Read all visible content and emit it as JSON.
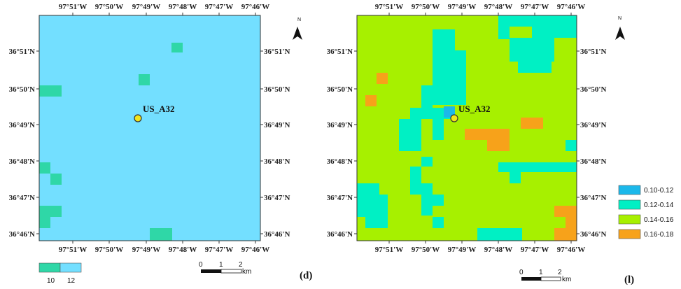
{
  "site_name": "US_A32",
  "lon_ticks": [
    "97°51'W",
    "97°50'W",
    "97°49'W",
    "97°48'W",
    "97°47'W",
    "97°46'W"
  ],
  "lat_ticks": [
    "36°51'N",
    "36°50'N",
    "36°49'N",
    "36°48'N",
    "36°47'N",
    "36°46'N"
  ],
  "north_label": "N",
  "scale_bar": {
    "labels": [
      "0",
      "1",
      "2"
    ],
    "unit": "km"
  },
  "colors": {
    "left_background": "#73dfff",
    "class_10": "#2fd7a7",
    "class_12": "#73dfff",
    "cyan_dark": "#1cb8ea",
    "teal": "#00f0c4",
    "lime": "#a7f000",
    "orange": "#f7a21a",
    "site_fill": "#f2e51a"
  },
  "panel_d": {
    "label": "(d)",
    "legend": [
      {
        "label": "10",
        "color": "#2fd7a7"
      },
      {
        "label": "12",
        "color": "#73dfff"
      }
    ]
  },
  "panel_l": {
    "label": "(l)",
    "legend": [
      {
        "label": "0.10-0.12",
        "color": "#1cb8ea"
      },
      {
        "label": "0.12-0.14",
        "color": "#00f0c4"
      },
      {
        "label": "0.14-0.16",
        "color": "#a7f000"
      },
      {
        "label": "0.16-0.18",
        "color": "#f7a21a"
      }
    ]
  }
}
